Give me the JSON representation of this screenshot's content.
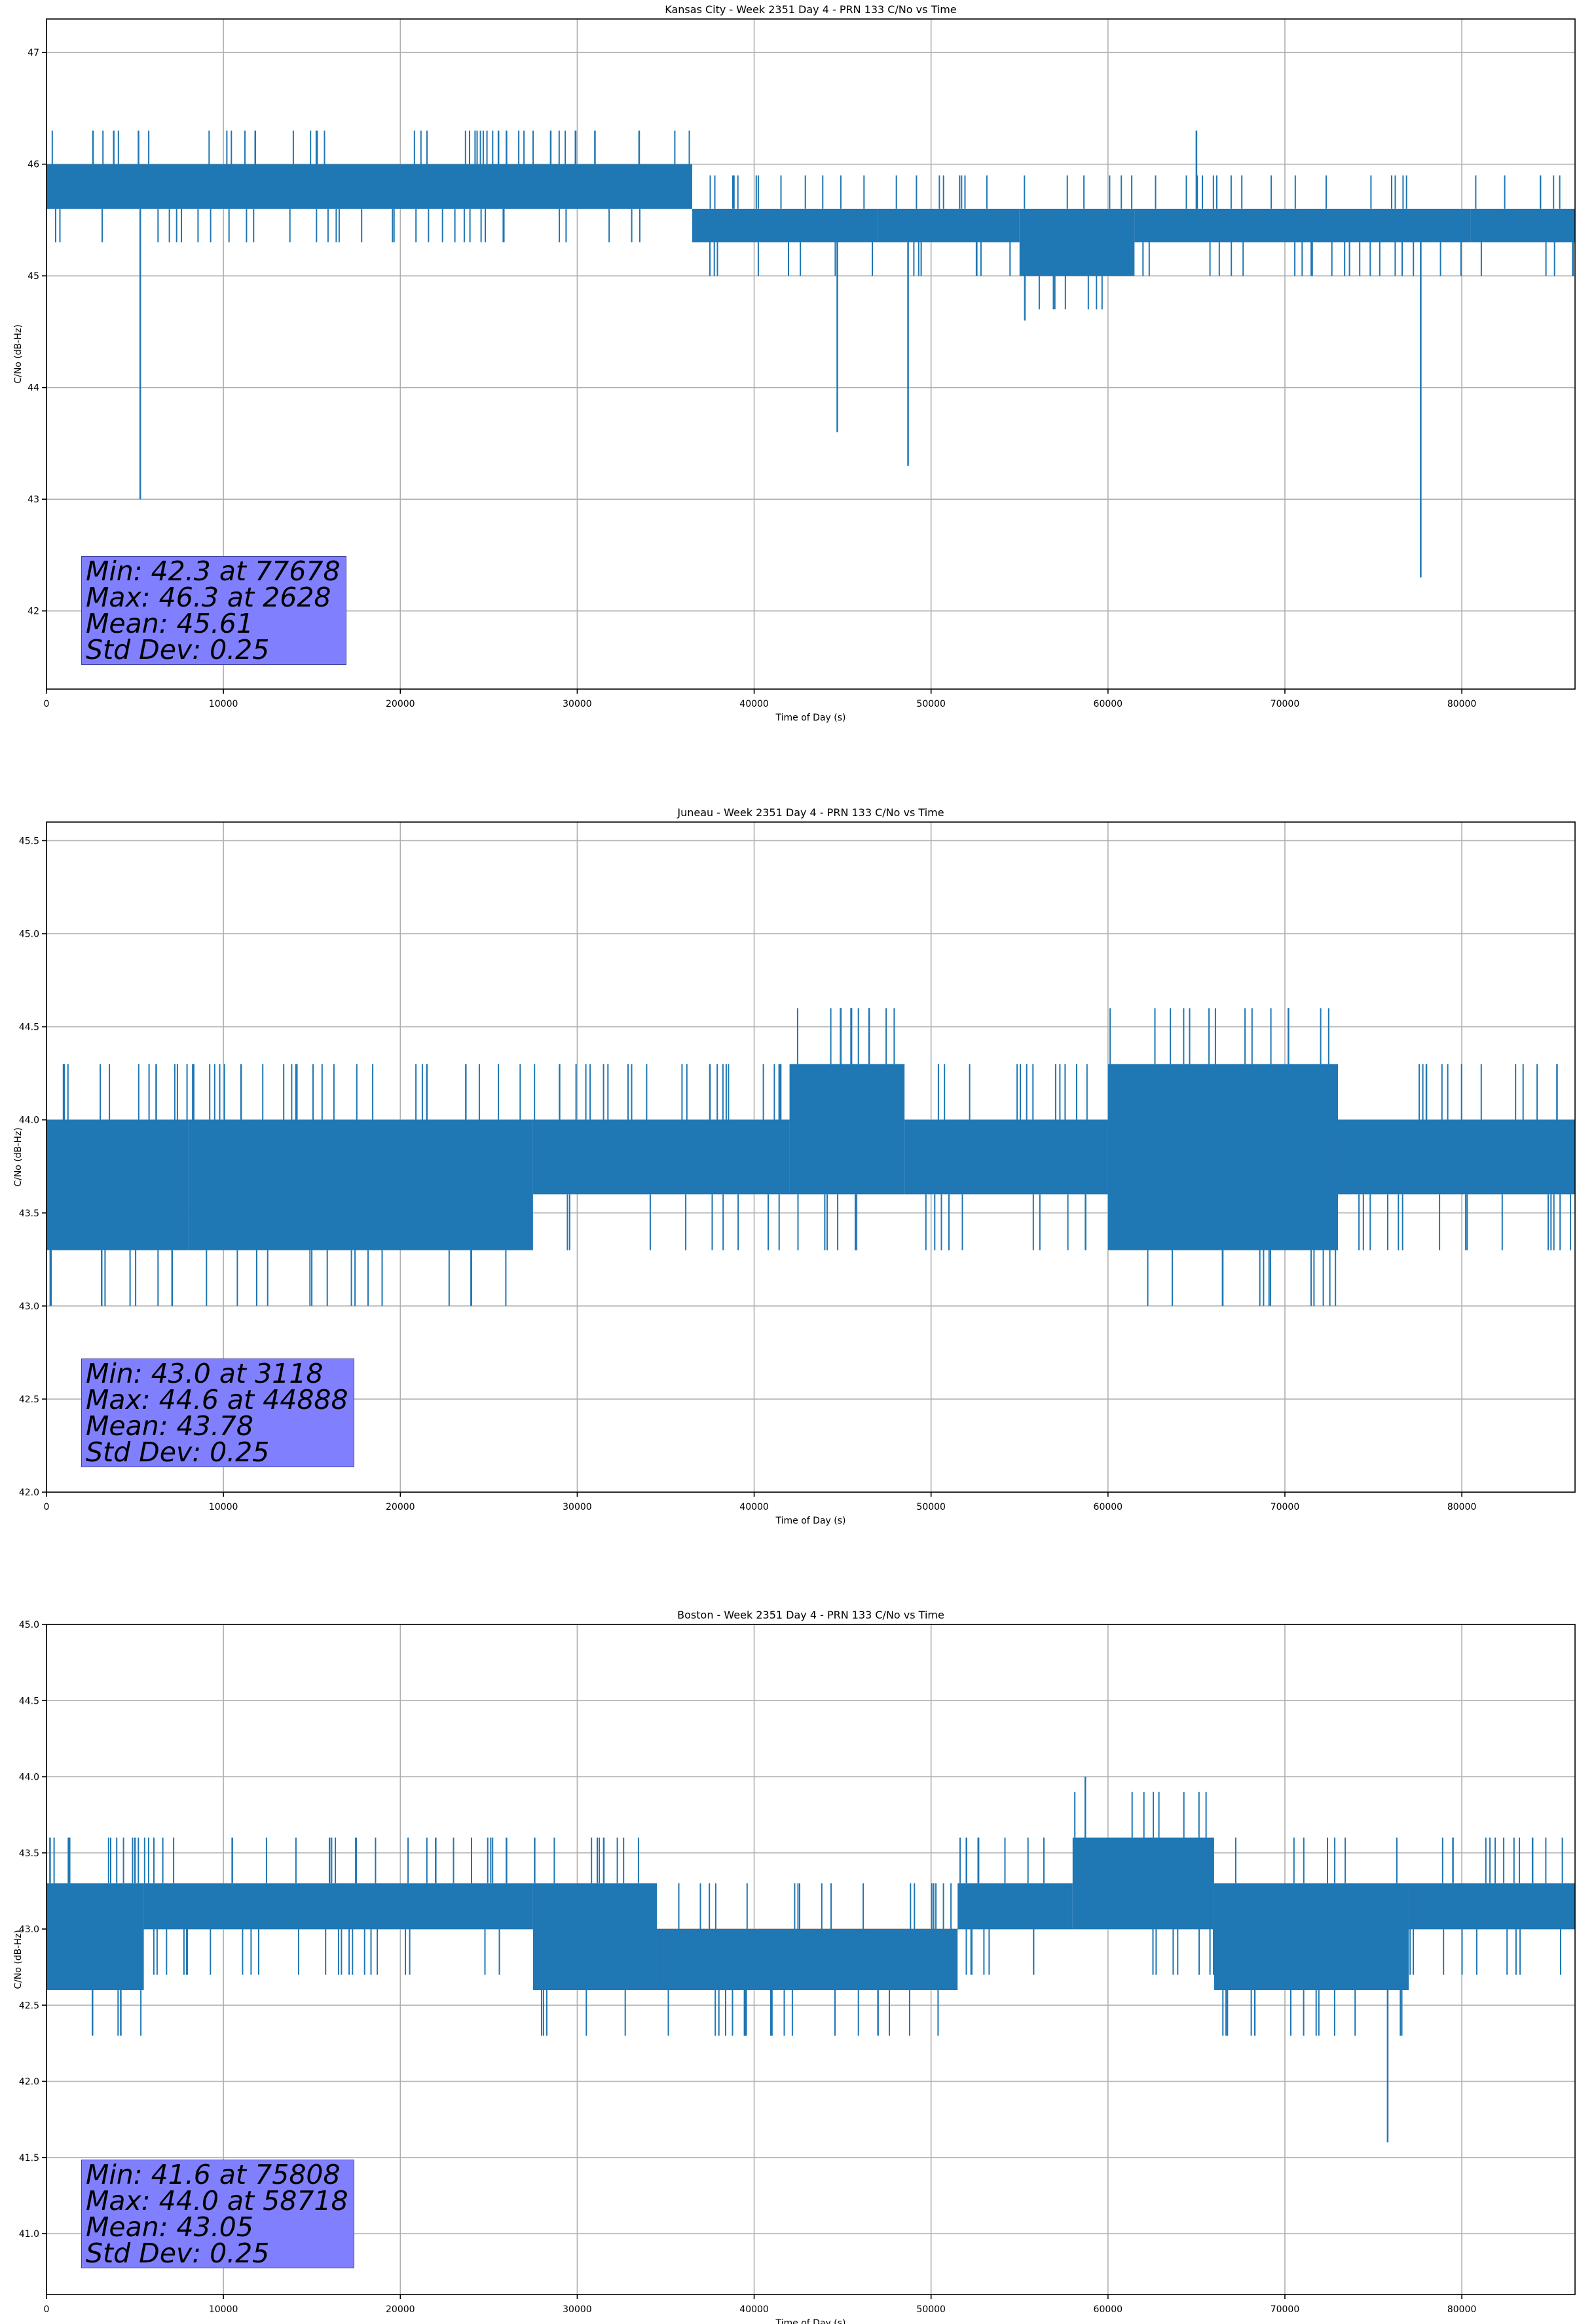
{
  "series_color": "#1f77b4",
  "stats_box_color": "#8080ff",
  "chart_data": [
    {
      "type": "line",
      "title": "Kansas City - Week 2351 Day 4 - PRN 133 C/No vs Time",
      "xlabel": "Time of Day (s)",
      "ylabel": "C/No (dB-Hz)",
      "xlim": [
        0,
        86400
      ],
      "ylim": [
        41.3,
        47.3
      ],
      "x_ticks": [
        0,
        10000,
        20000,
        30000,
        40000,
        50000,
        60000,
        70000,
        80000
      ],
      "y_ticks": [
        42,
        43,
        44,
        45,
        46,
        47
      ],
      "y_tick_labels": [
        "42",
        "43",
        "44",
        "45",
        "46",
        "47"
      ],
      "grid": true,
      "series": [
        {
          "name": "C/No",
          "segments": [
            {
              "start": 0,
              "end": 36500,
              "low": 45.6,
              "high": 46.0
            },
            {
              "start": 36500,
              "end": 47000,
              "low": 45.3,
              "high": 45.6
            },
            {
              "start": 47000,
              "end": 55000,
              "low": 45.3,
              "high": 45.6
            },
            {
              "start": 55000,
              "end": 61500,
              "low": 45.0,
              "high": 45.6
            },
            {
              "start": 61500,
              "end": 80500,
              "low": 45.3,
              "high": 45.6
            },
            {
              "start": 80500,
              "end": 86400,
              "low": 45.3,
              "high": 45.6
            }
          ],
          "spikes": [
            {
              "x": 5300,
              "y": 43.0
            },
            {
              "x": 44700,
              "y": 43.6
            },
            {
              "x": 48700,
              "y": 43.3
            },
            {
              "x": 55300,
              "y": 44.6
            },
            {
              "x": 77678,
              "y": 42.3
            },
            {
              "x": 2628,
              "y": 46.3
            },
            {
              "x": 3800,
              "y": 46.3
            },
            {
              "x": 5200,
              "y": 46.3
            },
            {
              "x": 11800,
              "y": 46.3
            },
            {
              "x": 26000,
              "y": 46.3
            },
            {
              "x": 28500,
              "y": 46.3
            },
            {
              "x": 31000,
              "y": 46.3
            },
            {
              "x": 33500,
              "y": 46.3
            },
            {
              "x": 65000,
              "y": 46.3
            }
          ]
        }
      ],
      "stats": [
        "Min: 42.3 at 77678",
        "Max: 46.3 at 2628",
        "Mean: 45.61",
        "Std Dev: 0.25"
      ]
    },
    {
      "type": "line",
      "title": "Juneau - Week 2351 Day 4 - PRN 133 C/No vs Time",
      "xlabel": "Time of Day (s)",
      "ylabel": "C/No (dB-Hz)",
      "xlim": [
        0,
        86400
      ],
      "ylim": [
        42.0,
        45.6
      ],
      "x_ticks": [
        0,
        10000,
        20000,
        30000,
        40000,
        50000,
        60000,
        70000,
        80000
      ],
      "y_ticks": [
        42.0,
        42.5,
        43.0,
        43.5,
        44.0,
        44.5,
        45.0,
        45.5
      ],
      "y_tick_labels": [
        "42.0",
        "42.5",
        "43.0",
        "43.5",
        "44.0",
        "44.5",
        "45.0",
        "45.5"
      ],
      "grid": true,
      "series": [
        {
          "name": "C/No",
          "segments": [
            {
              "start": 0,
              "end": 8000,
              "low": 43.3,
              "high": 44.0
            },
            {
              "start": 8000,
              "end": 27500,
              "low": 43.3,
              "high": 44.0
            },
            {
              "start": 27500,
              "end": 42000,
              "low": 43.6,
              "high": 44.0
            },
            {
              "start": 42000,
              "end": 48500,
              "low": 43.6,
              "high": 44.3
            },
            {
              "start": 48500,
              "end": 60000,
              "low": 43.6,
              "high": 44.0
            },
            {
              "start": 60000,
              "end": 73000,
              "low": 43.3,
              "high": 44.3
            },
            {
              "start": 73000,
              "end": 86400,
              "low": 43.6,
              "high": 44.0
            }
          ],
          "spikes": [
            {
              "x": 3118,
              "y": 43.0
            },
            {
              "x": 7100,
              "y": 43.0
            },
            {
              "x": 44888,
              "y": 44.6
            },
            {
              "x": 45500,
              "y": 44.6
            },
            {
              "x": 46500,
              "y": 44.6
            },
            {
              "x": 70200,
              "y": 44.6
            },
            {
              "x": 1000,
              "y": 44.3
            },
            {
              "x": 6200,
              "y": 44.3
            },
            {
              "x": 11000,
              "y": 44.3
            },
            {
              "x": 21500,
              "y": 44.3
            },
            {
              "x": 29000,
              "y": 44.3
            },
            {
              "x": 37500,
              "y": 44.3
            },
            {
              "x": 41500,
              "y": 44.3
            },
            {
              "x": 78000,
              "y": 44.3
            }
          ]
        }
      ],
      "stats": [
        "Min: 43.0 at 3118",
        "Max: 44.6 at 44888",
        "Mean: 43.78",
        "Std Dev: 0.25"
      ]
    },
    {
      "type": "line",
      "title": "Boston - Week 2351 Day 4 - PRN 133 C/No vs Time",
      "xlabel": "Time of Day (s)",
      "ylabel": "C/No (dB-Hz)",
      "xlim": [
        0,
        86400
      ],
      "ylim": [
        40.6,
        45.0
      ],
      "x_ticks": [
        0,
        10000,
        20000,
        30000,
        40000,
        50000,
        60000,
        70000,
        80000
      ],
      "y_ticks": [
        41.0,
        41.5,
        42.0,
        42.5,
        43.0,
        43.5,
        44.0,
        44.5,
        45.0
      ],
      "y_tick_labels": [
        "41.0",
        "41.5",
        "42.0",
        "42.5",
        "43.0",
        "43.5",
        "44.0",
        "44.5",
        "45.0"
      ],
      "grid": true,
      "series": [
        {
          "name": "C/No",
          "segments": [
            {
              "start": 0,
              "end": 5500,
              "low": 42.6,
              "high": 43.3
            },
            {
              "start": 5500,
              "end": 27500,
              "low": 43.0,
              "high": 43.3
            },
            {
              "start": 27500,
              "end": 34500,
              "low": 42.6,
              "high": 43.3
            },
            {
              "start": 34500,
              "end": 51500,
              "low": 42.6,
              "high": 43.0
            },
            {
              "start": 51500,
              "end": 58000,
              "low": 43.0,
              "high": 43.3
            },
            {
              "start": 58000,
              "end": 66000,
              "low": 43.0,
              "high": 43.6
            },
            {
              "start": 66000,
              "end": 77000,
              "low": 42.6,
              "high": 43.3
            },
            {
              "start": 77000,
              "end": 86400,
              "low": 43.0,
              "high": 43.3
            }
          ],
          "spikes": [
            {
              "x": 75808,
              "y": 41.6
            },
            {
              "x": 58718,
              "y": 44.0
            },
            {
              "x": 2600,
              "y": 42.3
            },
            {
              "x": 4200,
              "y": 42.3
            },
            {
              "x": 39500,
              "y": 42.3
            },
            {
              "x": 41000,
              "y": 42.3
            },
            {
              "x": 47000,
              "y": 42.3
            },
            {
              "x": 200,
              "y": 43.6
            },
            {
              "x": 1300,
              "y": 43.6
            },
            {
              "x": 5000,
              "y": 43.6
            },
            {
              "x": 10500,
              "y": 43.6
            },
            {
              "x": 16000,
              "y": 43.6
            },
            {
              "x": 22000,
              "y": 43.6
            },
            {
              "x": 26000,
              "y": 43.6
            },
            {
              "x": 31500,
              "y": 43.6
            },
            {
              "x": 52000,
              "y": 43.6
            },
            {
              "x": 79500,
              "y": 43.6
            },
            {
              "x": 84000,
              "y": 43.6
            }
          ]
        }
      ],
      "stats": [
        "Min: 41.6 at 75808",
        "Max: 44.0 at 58718",
        "Mean: 43.05",
        "Std Dev: 0.25"
      ]
    }
  ]
}
